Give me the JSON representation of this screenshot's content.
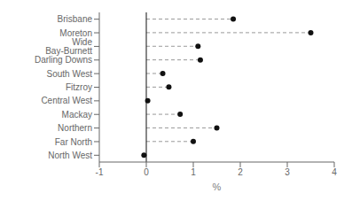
{
  "chart_data": {
    "type": "lollipop",
    "categories": [
      "Brisbane",
      "Moreton",
      "Wide Bay-Burnett",
      "Darling Downs",
      "South West",
      "Fitzroy",
      "Central West",
      "Mackay",
      "Northern",
      "Far North",
      "North West"
    ],
    "values": [
      1.85,
      3.5,
      1.1,
      1.15,
      0.35,
      0.48,
      0.03,
      0.72,
      1.5,
      1.0,
      -0.05
    ],
    "xlabel": "%",
    "xlim": [
      -1,
      4
    ],
    "xticks": [
      -1,
      0,
      1,
      2,
      3,
      4
    ],
    "color": "#111111",
    "line_style": "dashed",
    "grid": false
  }
}
